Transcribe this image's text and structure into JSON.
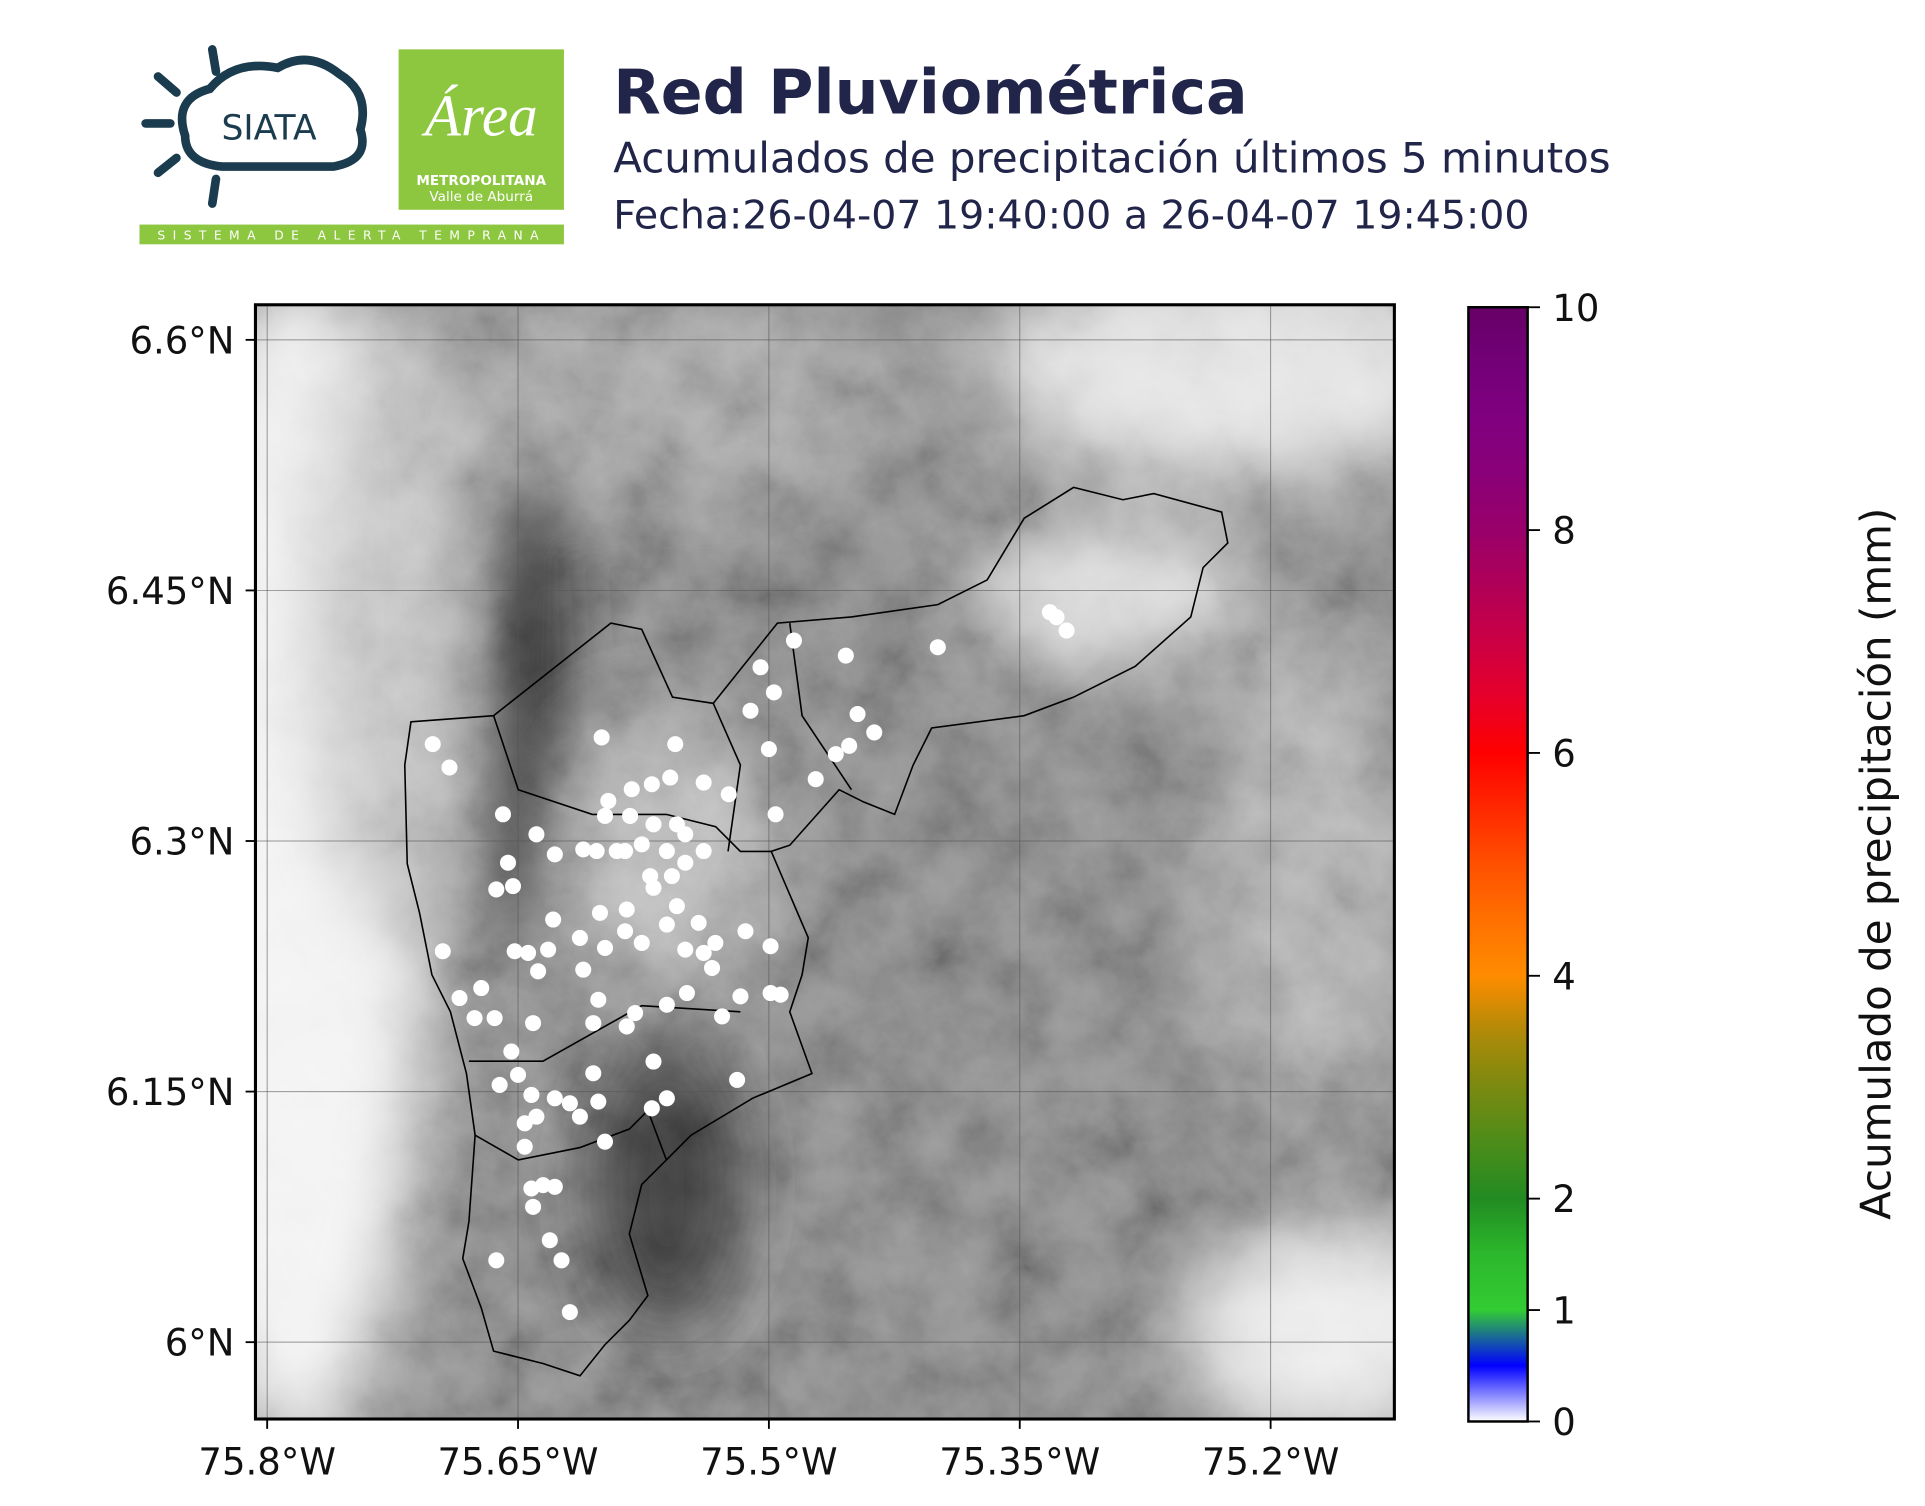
{
  "header": {
    "title": "Red Pluviométrica",
    "subtitle": "Acumulados de precipitación últimos 5 minutos",
    "date": "Fecha:26-04-07 19:40:00 a 26-04-07 19:45:00"
  },
  "logos": {
    "siata": "SIATA",
    "area": "Área",
    "metropolitana": "METROPOLITANA",
    "valle": "Valle de Aburrá",
    "sistema": "SISTEMA DE ALERTA TEMPRANA"
  },
  "chart_data": {
    "type": "scatter",
    "x": [
      -75.701,
      -75.691,
      -75.659,
      -75.639,
      -75.611,
      -75.628,
      -75.6,
      -75.556,
      -75.505,
      -75.485,
      -75.454,
      -75.511,
      -75.497,
      -75.447,
      -75.437,
      -75.46,
      -75.452,
      -75.399,
      -75.332,
      -75.328,
      -75.322,
      -75.5,
      -75.472,
      -75.496,
      -75.524,
      -75.539,
      -75.559,
      -75.57,
      -75.582,
      -75.596,
      -75.598,
      -75.583,
      -75.569,
      -75.555,
      -75.55,
      -75.561,
      -75.576,
      -75.591,
      -75.603,
      -75.586,
      -75.558,
      -75.571,
      -75.55,
      -75.539,
      -75.663,
      -75.656,
      -75.653,
      -75.695,
      -75.685,
      -75.672,
      -75.676,
      -75.664,
      -75.641,
      -75.654,
      -75.661,
      -75.65,
      -75.642,
      -75.646,
      -75.639,
      -75.646,
      -75.628,
      -75.619,
      -75.613,
      -75.602,
      -75.598,
      -75.605,
      -75.605,
      -75.585,
      -75.569,
      -75.561,
      -75.57,
      -75.519,
      -75.528,
      -75.549,
      -75.561,
      -75.58,
      -75.602,
      -75.611,
      -75.598,
      -75.586,
      -75.576,
      -75.561,
      -75.55,
      -75.539,
      -75.534,
      -75.517,
      -75.499,
      -75.493,
      -75.499,
      -75.514,
      -75.532,
      -75.542,
      -75.555,
      -75.569,
      -75.585,
      -75.601,
      -75.613,
      -75.629,
      -75.632,
      -75.644,
      -75.638,
      -75.652,
      -75.635,
      -75.628,
      -75.642,
      -75.641,
      -75.631,
      -75.624,
      -75.619,
      -75.663
    ],
    "y": [
      6.358,
      6.344,
      6.316,
      6.304,
      6.295,
      6.292,
      6.362,
      6.358,
      6.404,
      6.42,
      6.411,
      6.378,
      6.389,
      6.376,
      6.365,
      6.352,
      6.357,
      6.416,
      6.437,
      6.434,
      6.426,
      6.355,
      6.337,
      6.316,
      6.328,
      6.335,
      6.338,
      6.334,
      6.331,
      6.324,
      6.315,
      6.315,
      6.31,
      6.31,
      6.304,
      6.294,
      6.298,
      6.294,
      6.294,
      6.294,
      6.279,
      6.279,
      6.287,
      6.294,
      6.271,
      6.287,
      6.273,
      6.234,
      6.206,
      6.212,
      6.194,
      6.194,
      6.191,
      6.174,
      6.154,
      6.16,
      6.148,
      6.131,
      6.135,
      6.117,
      6.146,
      6.143,
      6.135,
      6.144,
      6.12,
      6.161,
      6.191,
      6.189,
      6.168,
      6.146,
      6.14,
      6.157,
      6.195,
      6.209,
      6.202,
      6.197,
      6.205,
      6.223,
      6.236,
      6.246,
      6.239,
      6.25,
      6.235,
      6.233,
      6.224,
      6.207,
      6.209,
      6.208,
      6.237,
      6.246,
      6.239,
      6.251,
      6.261,
      6.272,
      6.259,
      6.257,
      6.242,
      6.253,
      6.235,
      6.233,
      6.222,
      6.234,
      6.094,
      6.093,
      6.092,
      6.081,
      6.061,
      6.049,
      6.018,
      6.049
    ],
    "values": [
      0,
      0,
      0,
      0,
      0,
      0,
      0,
      0,
      0,
      0,
      0,
      0,
      0,
      0,
      0,
      0,
      0,
      0,
      0,
      0,
      0,
      0,
      0,
      0,
      0,
      0,
      0,
      0,
      0,
      0,
      0,
      0,
      0,
      0,
      0,
      0,
      0,
      0,
      0,
      0,
      0,
      0,
      0,
      0,
      0,
      0,
      0,
      0,
      0,
      0,
      0,
      0,
      0,
      0,
      0,
      0,
      0,
      0,
      0,
      0,
      0,
      0,
      0,
      0,
      0,
      0,
      0,
      0,
      0,
      0,
      0,
      0,
      0,
      0,
      0,
      0,
      0,
      0,
      0,
      0,
      0,
      0,
      0,
      0,
      0,
      0,
      0,
      0,
      0,
      0,
      0,
      0,
      0,
      0,
      0,
      0,
      0,
      0,
      0,
      0,
      0,
      0,
      0,
      0,
      0,
      0,
      0,
      0,
      0,
      0
    ],
    "xlim": [
      -75.807,
      -75.126
    ],
    "ylim": [
      5.954,
      6.621
    ],
    "xticks": [
      {
        "value": -75.8,
        "label": "75.8°W"
      },
      {
        "value": -75.65,
        "label": "75.65°W"
      },
      {
        "value": -75.5,
        "label": "75.5°W"
      },
      {
        "value": -75.35,
        "label": "75.35°W"
      },
      {
        "value": -75.2,
        "label": "75.2°W"
      }
    ],
    "yticks": [
      {
        "value": 6.0,
        "label": "6°N"
      },
      {
        "value": 6.15,
        "label": "6.15°N"
      },
      {
        "value": 6.3,
        "label": "6.3°N"
      },
      {
        "value": 6.45,
        "label": "6.45°N"
      },
      {
        "value": 6.6,
        "label": "6.6°N"
      }
    ],
    "grid": true,
    "colorbar": {
      "label": "Acumulado de precipitación (mm)",
      "lim": [
        0,
        10
      ],
      "ticks": [
        0,
        1,
        2,
        4,
        6,
        8,
        10
      ],
      "colors": [
        "#ffffff",
        "#0000ff",
        "#33cc33",
        "#2cb82c",
        "#228b22",
        "#4c8c1a",
        "#7a8a10",
        "#b08a08",
        "#ff8c00",
        "#ff7000",
        "#ff5000",
        "#ff2800",
        "#ff0000",
        "#e6002a",
        "#cc0044",
        "#b00058",
        "#99006a",
        "#8a0078",
        "#800080",
        "#730078",
        "#660066"
      ]
    }
  }
}
